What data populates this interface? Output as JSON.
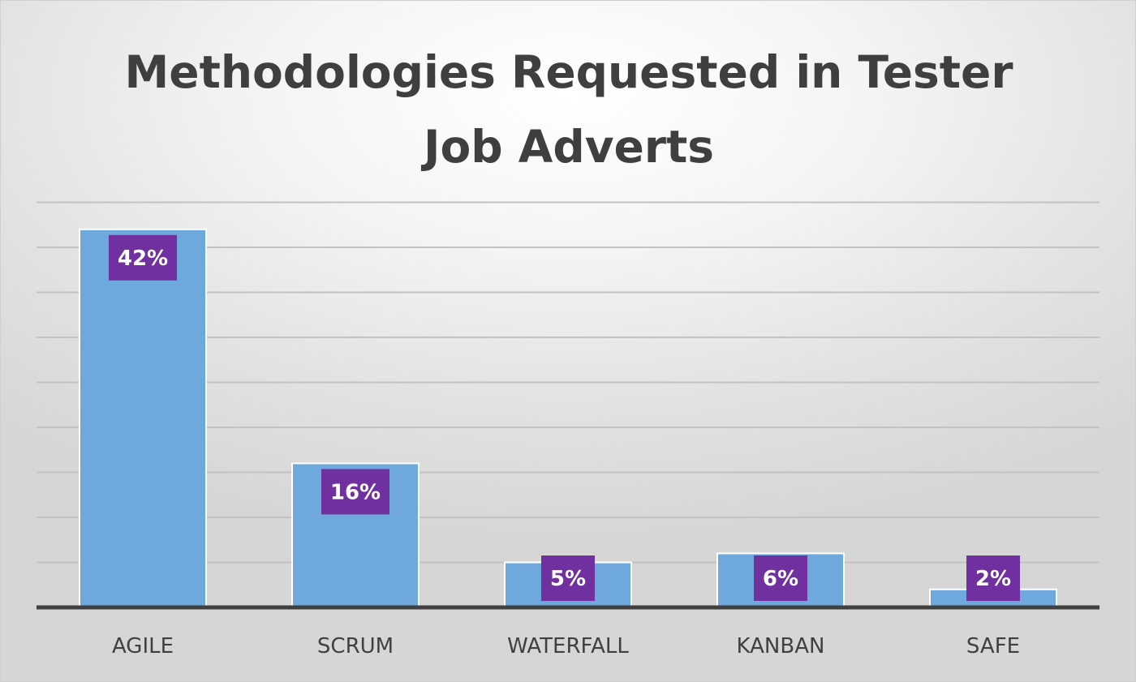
{
  "colors": {
    "bar": "#6fa8dc",
    "bar_edge": "#ffffff",
    "label_box": "#7030a0",
    "label_text": "#ffffff",
    "gridline": "#c2c2c2",
    "axis": "#404040",
    "title": "#3f3f3f"
  },
  "chart_data": {
    "type": "bar",
    "title": "Methodologies Requested in Tester Job Adverts",
    "xlabel": "",
    "ylabel": "",
    "categories": [
      "AGILE",
      "SCRUM",
      "WATERFALL",
      "KANBAN",
      "SAFE"
    ],
    "values": [
      42,
      16,
      5,
      6,
      2
    ],
    "value_labels": [
      "42%",
      "16%",
      "5%",
      "6%",
      "2%"
    ],
    "value_unit": "%",
    "ylim": [
      0,
      45
    ],
    "y_gridline_step": 5,
    "grid": true,
    "legend": "none",
    "y_tick_labels_shown": false
  }
}
